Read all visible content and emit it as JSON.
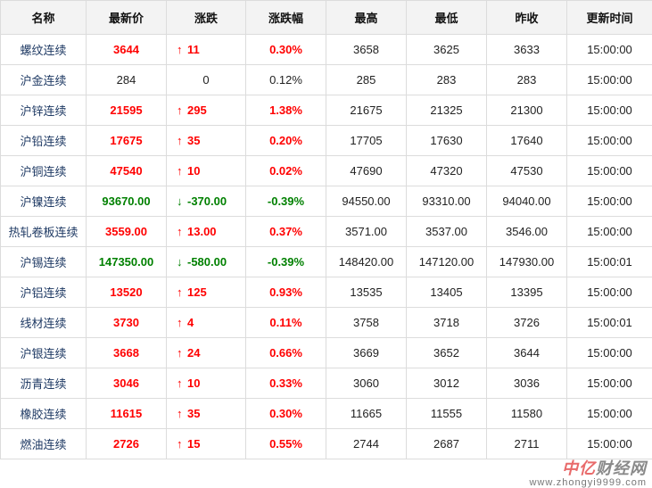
{
  "headers": [
    "名称",
    "最新价",
    "涨跌",
    "涨跌幅",
    "最高",
    "最低",
    "昨收",
    "更新时间"
  ],
  "colors": {
    "up": "#ff0000",
    "down": "#008000",
    "name": "#1f3a64",
    "header_bg": "#f3f3f3"
  },
  "rows": [
    {
      "name": "螺纹连续",
      "last": "3644",
      "change": "11",
      "pct": "0.30%",
      "high": "3658",
      "low": "3625",
      "prev": "3633",
      "time": "15:00:00",
      "dir": "up"
    },
    {
      "name": "沪金连续",
      "last": "284",
      "change": "0",
      "pct": "0.12%",
      "high": "285",
      "low": "283",
      "prev": "283",
      "time": "15:00:00",
      "dir": "flat"
    },
    {
      "name": "沪锌连续",
      "last": "21595",
      "change": "295",
      "pct": "1.38%",
      "high": "21675",
      "low": "21325",
      "prev": "21300",
      "time": "15:00:00",
      "dir": "up"
    },
    {
      "name": "沪铅连续",
      "last": "17675",
      "change": "35",
      "pct": "0.20%",
      "high": "17705",
      "low": "17630",
      "prev": "17640",
      "time": "15:00:00",
      "dir": "up"
    },
    {
      "name": "沪铜连续",
      "last": "47540",
      "change": "10",
      "pct": "0.02%",
      "high": "47690",
      "low": "47320",
      "prev": "47530",
      "time": "15:00:00",
      "dir": "up"
    },
    {
      "name": "沪镍连续",
      "last": "93670.00",
      "change": "-370.00",
      "pct": "-0.39%",
      "high": "94550.00",
      "low": "93310.00",
      "prev": "94040.00",
      "time": "15:00:00",
      "dir": "down"
    },
    {
      "name": "热轧卷板连续",
      "last": "3559.00",
      "change": "13.00",
      "pct": "0.37%",
      "high": "3571.00",
      "low": "3537.00",
      "prev": "3546.00",
      "time": "15:00:00",
      "dir": "up"
    },
    {
      "name": "沪锡连续",
      "last": "147350.00",
      "change": "-580.00",
      "pct": "-0.39%",
      "high": "148420.00",
      "low": "147120.00",
      "prev": "147930.00",
      "time": "15:00:01",
      "dir": "down"
    },
    {
      "name": "沪铝连续",
      "last": "13520",
      "change": "125",
      "pct": "0.93%",
      "high": "13535",
      "low": "13405",
      "prev": "13395",
      "time": "15:00:00",
      "dir": "up"
    },
    {
      "name": "线材连续",
      "last": "3730",
      "change": "4",
      "pct": "0.11%",
      "high": "3758",
      "low": "3718",
      "prev": "3726",
      "time": "15:00:01",
      "dir": "up"
    },
    {
      "name": "沪银连续",
      "last": "3668",
      "change": "24",
      "pct": "0.66%",
      "high": "3669",
      "low": "3652",
      "prev": "3644",
      "time": "15:00:00",
      "dir": "up"
    },
    {
      "name": "沥青连续",
      "last": "3046",
      "change": "10",
      "pct": "0.33%",
      "high": "3060",
      "low": "3012",
      "prev": "3036",
      "time": "15:00:00",
      "dir": "up"
    },
    {
      "name": "橡胶连续",
      "last": "11615",
      "change": "35",
      "pct": "0.30%",
      "high": "11665",
      "low": "11555",
      "prev": "11580",
      "time": "15:00:00",
      "dir": "up"
    },
    {
      "name": "燃油连续",
      "last": "2726",
      "change": "15",
      "pct": "0.55%",
      "high": "2744",
      "low": "2687",
      "prev": "2711",
      "time": "15:00:00",
      "dir": "up"
    }
  ],
  "watermark": {
    "brand_a": "中亿",
    "brand_b": "财经网",
    "url": "www.zhongyi9999.com"
  }
}
